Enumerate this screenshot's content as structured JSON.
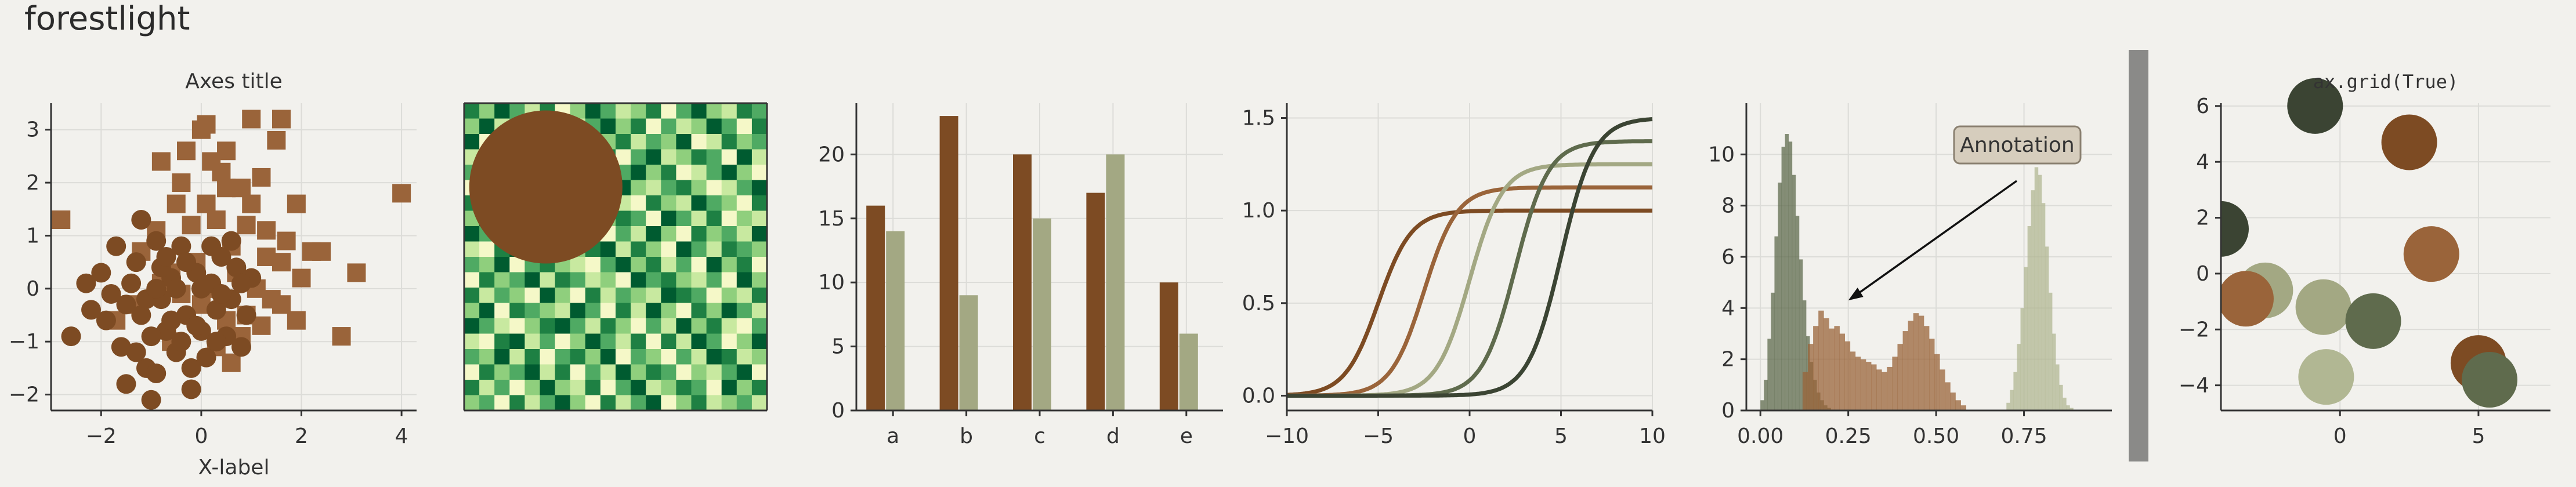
{
  "figure": {
    "title": "forestlight"
  },
  "colors": {
    "brown": "#7d4b23",
    "tan": "#9a643a",
    "sage": "#a3a883",
    "olive": "#5f6b4d",
    "dark": "#3b4433",
    "lightsage": "#b1b793",
    "annot_bg": "#d6cdbd"
  },
  "chart_data": [
    {
      "type": "scatter",
      "title": "Axes title",
      "xlabel": "X-label",
      "ylabel": "",
      "xlim": [
        -3.0,
        4.3
      ],
      "ylim": [
        -2.3,
        3.5
      ],
      "xticks": [
        -2,
        0,
        2,
        4
      ],
      "yticks": [
        -2,
        -1,
        0,
        1,
        2,
        3
      ],
      "grid": true,
      "series": [
        {
          "marker": "square",
          "points": [
            [
              -2.8,
              1.3
            ],
            [
              -0.8,
              2.4
            ],
            [
              -0.3,
              2.6
            ],
            [
              0.0,
              3.0
            ],
            [
              0.1,
              3.1
            ],
            [
              0.5,
              2.6
            ],
            [
              1.0,
              3.2
            ],
            [
              1.6,
              3.2
            ],
            [
              1.5,
              2.8
            ],
            [
              0.4,
              2.2
            ],
            [
              0.8,
              1.9
            ],
            [
              1.2,
              2.1
            ],
            [
              1.9,
              1.6
            ],
            [
              1.7,
              0.9
            ],
            [
              2.2,
              0.7
            ],
            [
              2.4,
              0.7
            ],
            [
              2.0,
              0.2
            ],
            [
              1.6,
              0.5
            ],
            [
              1.3,
              1.1
            ],
            [
              0.9,
              1.2
            ],
            [
              0.6,
              0.8
            ],
            [
              0.3,
              1.3
            ],
            [
              0.1,
              1.6
            ],
            [
              -0.2,
              1.2
            ],
            [
              -0.5,
              1.6
            ],
            [
              -0.9,
              1.1
            ],
            [
              -1.2,
              0.7
            ],
            [
              -0.6,
              0.3
            ],
            [
              -0.1,
              0.5
            ],
            [
              0.2,
              0.0
            ],
            [
              0.7,
              0.3
            ],
            [
              1.1,
              0.0
            ],
            [
              1.4,
              -0.2
            ],
            [
              0.9,
              -0.5
            ],
            [
              0.5,
              -0.6
            ],
            [
              0.0,
              -0.3
            ],
            [
              -0.4,
              -0.1
            ],
            [
              -0.8,
              0.1
            ],
            [
              -1.4,
              -0.3
            ],
            [
              -1.7,
              -0.6
            ],
            [
              -0.6,
              -1.0
            ],
            [
              0.3,
              -1.1
            ],
            [
              0.8,
              -0.9
            ],
            [
              1.2,
              -0.7
            ],
            [
              1.6,
              -0.3
            ],
            [
              2.8,
              -0.9
            ],
            [
              3.1,
              0.3
            ],
            [
              4.0,
              1.8
            ],
            [
              0.6,
              -1.4
            ],
            [
              1.9,
              -0.6
            ],
            [
              1.0,
              1.6
            ],
            [
              0.2,
              2.4
            ],
            [
              -0.4,
              2.0
            ],
            [
              0.5,
              1.9
            ],
            [
              1.3,
              0.6
            ]
          ]
        },
        {
          "marker": "circle",
          "points": [
            [
              -2.6,
              -0.9
            ],
            [
              -2.2,
              -0.4
            ],
            [
              -2.0,
              0.3
            ],
            [
              -1.8,
              -0.1
            ],
            [
              -1.6,
              -1.1
            ],
            [
              -1.5,
              -1.8
            ],
            [
              -1.3,
              0.5
            ],
            [
              -1.2,
              -0.5
            ],
            [
              -1.1,
              -1.5
            ],
            [
              -1.0,
              -2.1
            ],
            [
              -0.9,
              0.9
            ],
            [
              -0.8,
              -0.2
            ],
            [
              -0.7,
              -0.8
            ],
            [
              -0.6,
              0.2
            ],
            [
              -0.5,
              -1.2
            ],
            [
              -0.4,
              0.8
            ],
            [
              -0.3,
              -0.5
            ],
            [
              -0.2,
              -1.5
            ],
            [
              -0.1,
              0.3
            ],
            [
              0.0,
              -0.8
            ],
            [
              0.1,
              -1.3
            ],
            [
              0.2,
              0.1
            ],
            [
              0.3,
              -0.4
            ],
            [
              0.4,
              0.6
            ],
            [
              0.5,
              -0.9
            ],
            [
              0.6,
              -0.2
            ],
            [
              0.7,
              0.4
            ],
            [
              0.8,
              -1.1
            ],
            [
              0.9,
              -0.5
            ],
            [
              1.0,
              0.2
            ],
            [
              -1.9,
              -0.6
            ],
            [
              -1.4,
              0.1
            ],
            [
              -1.0,
              -0.9
            ],
            [
              -0.8,
              0.4
            ],
            [
              -0.6,
              -0.6
            ],
            [
              -0.3,
              0.5
            ],
            [
              0.0,
              0.0
            ],
            [
              0.3,
              -1.0
            ],
            [
              0.6,
              0.9
            ],
            [
              -1.2,
              1.3
            ],
            [
              -0.9,
              -1.6
            ],
            [
              -0.2,
              -1.9
            ],
            [
              -2.3,
              0.1
            ],
            [
              -1.7,
              0.8
            ],
            [
              0.4,
              -0.1
            ],
            [
              -0.5,
              0.0
            ],
            [
              -1.1,
              -0.2
            ],
            [
              0.8,
              0.1
            ],
            [
              -0.4,
              -1.0
            ],
            [
              -1.5,
              -0.3
            ],
            [
              -0.7,
              0.6
            ],
            [
              -1.3,
              -1.2
            ],
            [
              0.2,
              0.8
            ],
            [
              -0.1,
              -0.7
            ],
            [
              -0.9,
              0.0
            ]
          ]
        }
      ]
    },
    {
      "type": "heatmap",
      "rows": 20,
      "cols": 20,
      "palette": [
        "#f5f8c8",
        "#c8e9a0",
        "#8fcf7d",
        "#4faa63",
        "#1e8043",
        "#005b30"
      ],
      "values": [
        [
          4,
          2,
          5,
          3,
          1,
          4,
          0,
          2,
          5,
          3,
          1,
          2,
          4,
          0,
          3,
          5,
          2,
          1,
          4,
          3
        ],
        [
          2,
          5,
          1,
          3,
          4,
          0,
          2,
          1,
          3,
          5,
          2,
          4,
          0,
          3,
          1,
          2,
          5,
          3,
          0,
          4
        ],
        [
          5,
          0,
          3,
          2,
          1,
          4,
          3,
          5,
          0,
          2,
          4,
          1,
          3,
          2,
          5,
          0,
          1,
          4,
          2,
          3
        ],
        [
          1,
          3,
          4,
          0,
          2,
          5,
          1,
          3,
          2,
          4,
          0,
          3,
          5,
          1,
          2,
          4,
          3,
          0,
          5,
          1
        ],
        [
          3,
          4,
          0,
          5,
          3,
          1,
          2,
          4,
          1,
          0,
          3,
          5,
          2,
          4,
          0,
          1,
          3,
          5,
          2,
          0
        ],
        [
          0,
          2,
          3,
          1,
          5,
          2,
          4,
          0,
          3,
          1,
          5,
          2,
          1,
          3,
          4,
          2,
          0,
          1,
          3,
          5
        ],
        [
          4,
          1,
          2,
          4,
          0,
          3,
          5,
          2,
          4,
          3,
          1,
          0,
          4,
          2,
          1,
          5,
          3,
          2,
          0,
          4
        ],
        [
          2,
          5,
          1,
          3,
          2,
          0,
          1,
          3,
          5,
          2,
          4,
          3,
          0,
          5,
          3,
          1,
          4,
          0,
          2,
          1
        ],
        [
          5,
          3,
          0,
          2,
          4,
          1,
          3,
          5,
          2,
          0,
          3,
          1,
          5,
          2,
          0,
          4,
          2,
          3,
          1,
          5
        ],
        [
          1,
          0,
          4,
          5,
          1,
          3,
          0,
          2,
          4,
          5,
          1,
          4,
          2,
          0,
          5,
          3,
          1,
          4,
          3,
          2
        ],
        [
          3,
          2,
          5,
          0,
          3,
          4,
          2,
          1,
          0,
          3,
          5,
          2,
          4,
          1,
          3,
          0,
          5,
          2,
          4,
          0
        ],
        [
          0,
          4,
          2,
          3,
          5,
          1,
          4,
          3,
          1,
          2,
          0,
          5,
          3,
          4,
          2,
          1,
          3,
          0,
          5,
          2
        ],
        [
          4,
          1,
          3,
          2,
          0,
          5,
          2,
          0,
          4,
          1,
          3,
          2,
          1,
          5,
          4,
          3,
          0,
          2,
          1,
          4
        ],
        [
          2,
          5,
          0,
          4,
          3,
          2,
          1,
          5,
          3,
          0,
          4,
          1,
          5,
          2,
          0,
          4,
          2,
          5,
          3,
          1
        ],
        [
          5,
          3,
          1,
          0,
          2,
          4,
          5,
          3,
          1,
          4,
          2,
          0,
          3,
          1,
          5,
          2,
          4,
          1,
          0,
          3
        ],
        [
          1,
          0,
          4,
          5,
          1,
          3,
          0,
          2,
          5,
          3,
          1,
          4,
          0,
          4,
          1,
          5,
          3,
          0,
          2,
          5
        ],
        [
          3,
          2,
          5,
          1,
          4,
          0,
          3,
          4,
          2,
          5,
          0,
          3,
          2,
          0,
          3,
          1,
          5,
          4,
          1,
          2
        ],
        [
          0,
          4,
          2,
          3,
          5,
          1,
          4,
          0,
          3,
          1,
          5,
          2,
          4,
          3,
          0,
          2,
          1,
          3,
          5,
          0
        ],
        [
          4,
          1,
          3,
          0,
          2,
          5,
          2,
          1,
          4,
          0,
          3,
          5,
          1,
          2,
          4,
          3,
          0,
          5,
          2,
          4
        ],
        [
          2,
          3,
          0,
          4,
          1,
          3,
          5,
          2,
          0,
          4,
          1,
          3,
          5,
          0,
          2,
          4,
          1,
          2,
          3,
          1
        ]
      ],
      "overlay_circle_color": "#7d4b23"
    },
    {
      "type": "bar",
      "categories": [
        "a",
        "b",
        "c",
        "d",
        "e"
      ],
      "series": [
        {
          "values": [
            16,
            23,
            20,
            17,
            10
          ]
        },
        {
          "values": [
            14,
            9,
            15,
            20,
            6
          ]
        }
      ],
      "ylim": [
        0,
        24
      ],
      "yticks": [
        0,
        5,
        10,
        15,
        20
      ],
      "grid": true
    },
    {
      "type": "line",
      "xlim": [
        -10,
        10
      ],
      "ylim": [
        -0.08,
        1.58
      ],
      "xticks": [
        -10,
        -5,
        0,
        5,
        10
      ],
      "yticks": [
        0.0,
        0.5,
        1.0,
        1.5
      ],
      "ytick_labels": [
        "0.0",
        "0.5",
        "1.0",
        "1.5"
      ],
      "grid": true,
      "series": [
        {
          "shift": -5,
          "amplitude": 1.0,
          "steepness": 1.1
        },
        {
          "shift": -2.5,
          "amplitude": 1.125,
          "steepness": 1.1
        },
        {
          "shift": 0,
          "amplitude": 1.25,
          "steepness": 1.1
        },
        {
          "shift": 2.5,
          "amplitude": 1.375,
          "steepness": 1.1
        },
        {
          "shift": 5,
          "amplitude": 1.5,
          "steepness": 1.1
        }
      ]
    },
    {
      "type": "histogram",
      "xlim": [
        -0.04,
        1.0
      ],
      "ylim": [
        0,
        12
      ],
      "xticks": [
        0.0,
        0.25,
        0.5,
        0.75
      ],
      "xtick_labels": [
        "0.00",
        "0.25",
        "0.50",
        "0.75"
      ],
      "yticks": [
        0,
        2,
        4,
        6,
        8,
        10
      ],
      "grid": true,
      "annotation": {
        "text": "Annotation",
        "arrow_target": [
          0.25,
          4.3
        ]
      },
      "series": [
        {
          "bin_start": 0.0,
          "bin_width": 0.01,
          "counts": [
            0.4,
            1.2,
            2.8,
            4.6,
            6.8,
            8.9,
            10.3,
            10.8,
            10.5,
            9.2,
            7.6,
            5.9,
            4.3,
            2.9,
            1.9,
            1.2,
            0.7,
            0.4,
            0.2,
            0.1
          ]
        },
        {
          "bin_start": 0.12,
          "bin_width": 0.015,
          "counts": [
            1.5,
            2.6,
            3.3,
            3.9,
            3.6,
            3.2,
            3.3,
            3.0,
            2.7,
            2.3,
            2.1,
            2.0,
            1.9,
            1.8,
            1.6,
            1.5,
            1.7,
            2.1,
            2.6,
            3.1,
            3.5,
            3.8,
            3.7,
            3.3,
            2.8,
            2.2,
            1.6,
            1.1,
            0.7,
            0.4,
            0.2
          ]
        },
        {
          "bin_start": 0.7,
          "bin_width": 0.01,
          "counts": [
            0.3,
            0.8,
            1.5,
            2.6,
            4.0,
            5.6,
            7.2,
            8.6,
            9.5,
            9.2,
            8.1,
            6.4,
            4.6,
            3.0,
            1.8,
            1.0,
            0.5,
            0.2,
            0.1
          ]
        }
      ]
    },
    {
      "type": "scatter",
      "title": "ax.grid(True)",
      "xlim": [
        -4.3,
        7.6
      ],
      "ylim": [
        -4.9,
        6.1
      ],
      "xticks": [
        0,
        5
      ],
      "yticks": [
        -4,
        -2,
        0,
        2,
        4,
        6
      ],
      "grid": true,
      "points": [
        [
          -4.3,
          1.6,
          "#3b4433"
        ],
        [
          -0.9,
          6.0,
          "#3b4433"
        ],
        [
          2.5,
          4.7,
          "#7d4b23"
        ],
        [
          -2.7,
          -0.6,
          "#a3a883"
        ],
        [
          -3.4,
          -0.9,
          "#9a643a"
        ],
        [
          3.3,
          0.7,
          "#9a643a"
        ],
        [
          -0.6,
          -1.2,
          "#a3a883"
        ],
        [
          1.2,
          -1.7,
          "#5f6b4d"
        ],
        [
          5.0,
          -3.2,
          "#7d4b23"
        ],
        [
          5.4,
          -3.8,
          "#5f6b4d"
        ],
        [
          -0.5,
          -3.7,
          "#b1b793"
        ]
      ]
    }
  ]
}
